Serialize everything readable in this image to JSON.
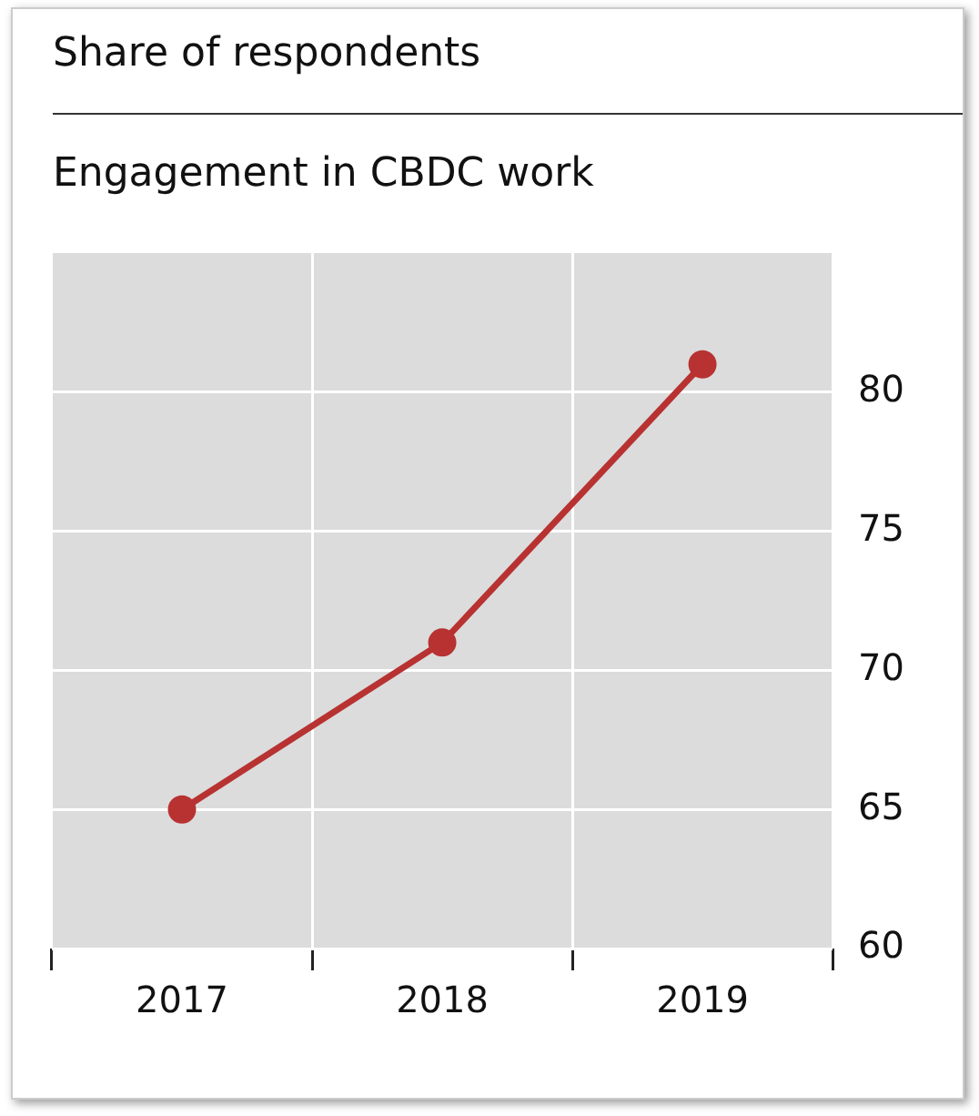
{
  "chart_data": {
    "type": "line",
    "title": "Share of respondents",
    "subtitle": "Engagement in CBDC work",
    "categories": [
      "2017",
      "2018",
      "2019"
    ],
    "series": [
      {
        "color": "#b83232",
        "values": [
          65,
          71,
          81
        ]
      }
    ],
    "ylim": [
      60,
      85
    ],
    "yticks": [
      60,
      65,
      70,
      75,
      80
    ],
    "grid": true,
    "legend": false,
    "marker": "circle",
    "line_style": "solid"
  }
}
